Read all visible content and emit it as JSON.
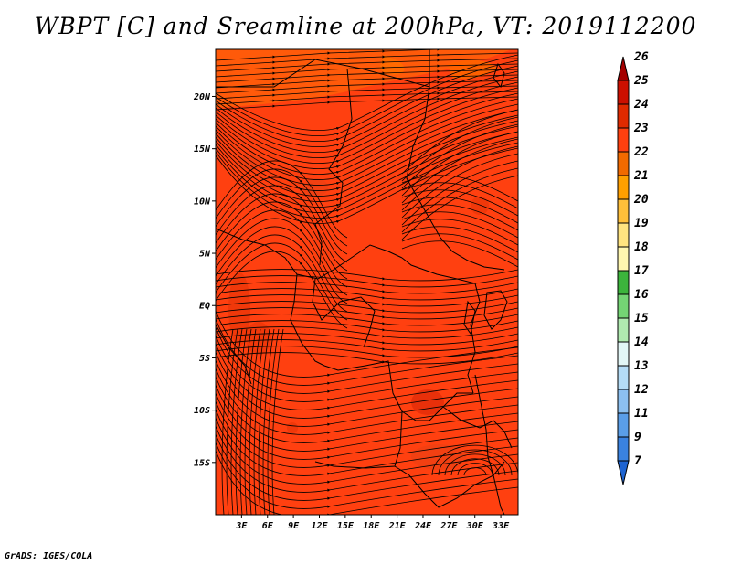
{
  "title": "WBPT [C] and Sreamline at 200hPa, VT: 2019112200",
  "footer": "GrADS: IGES/COLA",
  "map": {
    "lon_range": [
      0,
      35
    ],
    "lat_range": [
      -20,
      24.5
    ],
    "lon_ticks": [
      {
        "value": 3,
        "label": "3E"
      },
      {
        "value": 6,
        "label": "6E"
      },
      {
        "value": 9,
        "label": "9E"
      },
      {
        "value": 12,
        "label": "12E"
      },
      {
        "value": 15,
        "label": "15E"
      },
      {
        "value": 18,
        "label": "18E"
      },
      {
        "value": 21,
        "label": "21E"
      },
      {
        "value": 24,
        "label": "24E"
      },
      {
        "value": 27,
        "label": "27E"
      },
      {
        "value": 30,
        "label": "30E"
      },
      {
        "value": 33,
        "label": "33E"
      }
    ],
    "lat_ticks": [
      {
        "value": 20,
        "label": "20N"
      },
      {
        "value": 15,
        "label": "15N"
      },
      {
        "value": 10,
        "label": "10N"
      },
      {
        "value": 5,
        "label": "5N"
      },
      {
        "value": 0,
        "label": "EQ"
      },
      {
        "value": -5,
        "label": "5S"
      },
      {
        "value": -10,
        "label": "10S"
      },
      {
        "value": -15,
        "label": "15S"
      }
    ],
    "base_color": "#ff4010"
  },
  "colorbar": {
    "labels": [
      "26",
      "25",
      "24",
      "23",
      "22",
      "21",
      "20",
      "19",
      "18",
      "17",
      "16",
      "15",
      "14",
      "13",
      "12",
      "11",
      "9",
      "7"
    ],
    "colors": [
      "#a50000",
      "#cc1000",
      "#e02a00",
      "#ff4010",
      "#f26a00",
      "#ffa000",
      "#ffc03a",
      "#ffe480",
      "#fff7b0",
      "#3cb43c",
      "#74d474",
      "#b0eab0",
      "#e2f6f6",
      "#b4dcf6",
      "#8cc0f0",
      "#5a9ee8",
      "#3a82e0",
      "#1e64d2"
    ]
  }
}
